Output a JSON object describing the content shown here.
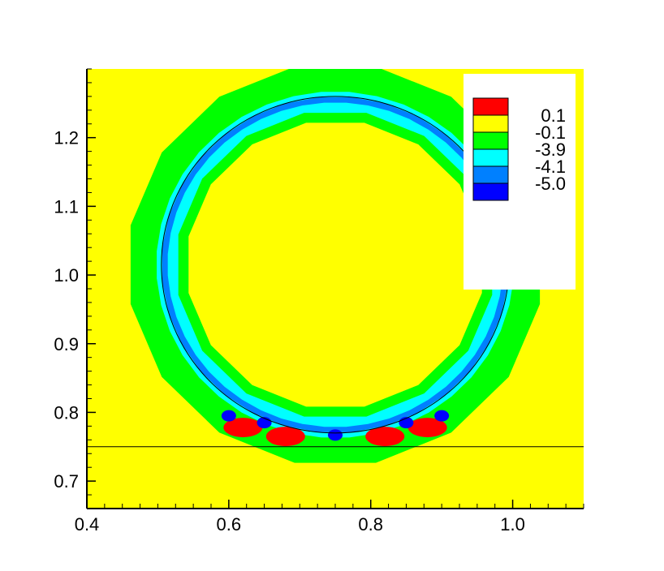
{
  "chart_data": {
    "type": "heatmap",
    "title": "",
    "xlabel": "",
    "ylabel": "",
    "xlim": [
      0.4,
      1.1
    ],
    "ylim": [
      0.66,
      1.3
    ],
    "x_ticks": [
      "0.4",
      "0.6",
      "0.8",
      "1.0"
    ],
    "y_ticks": [
      "0.7",
      "0.8",
      "0.9",
      "1.0",
      "1.1",
      "1.2"
    ],
    "grid": false,
    "legend_position": "top-right",
    "legend": [
      {
        "label": "0.1",
        "color": "#ff0000"
      },
      {
        "label": "-0.1",
        "color": "#ffff00"
      },
      {
        "label": "-3.9",
        "color": "#00ff00"
      },
      {
        "label": "-4.1",
        "color": "#00ffff"
      },
      {
        "label": "-5.0",
        "color": "#0080ff"
      },
      {
        "label": "",
        "color": "#0000ff"
      }
    ],
    "circle": {
      "center_x": 0.75,
      "center_y": 1.015,
      "radius": 0.245
    },
    "horizontal_line_y": 0.75,
    "hot_spots": [
      {
        "x": 0.62,
        "y": 0.778
      },
      {
        "x": 0.68,
        "y": 0.765
      },
      {
        "x": 0.82,
        "y": 0.765
      },
      {
        "x": 0.88,
        "y": 0.778
      }
    ],
    "cold_spots": [
      {
        "x": 0.6,
        "y": 0.795
      },
      {
        "x": 0.65,
        "y": 0.785
      },
      {
        "x": 0.75,
        "y": 0.767
      },
      {
        "x": 0.85,
        "y": 0.785
      },
      {
        "x": 0.9,
        "y": 0.795
      }
    ]
  }
}
